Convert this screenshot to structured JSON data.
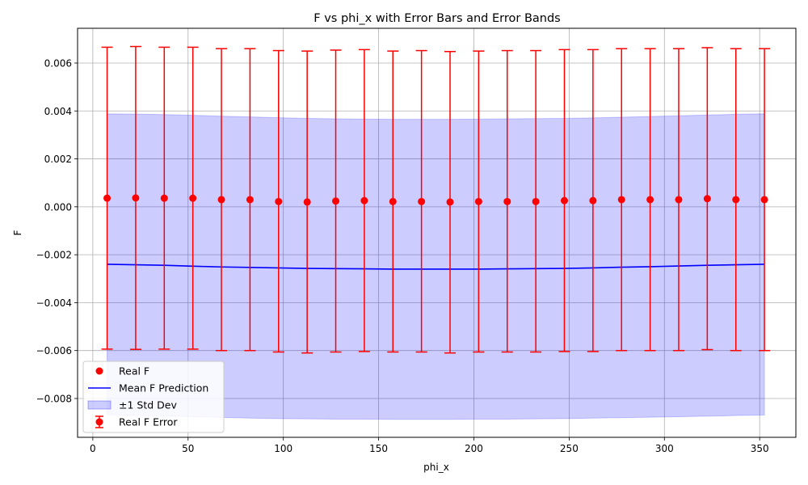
{
  "chart_data": {
    "type": "scatter",
    "title": "F vs phi_x with Error Bars and Error Bands",
    "xlabel": "phi_x",
    "ylabel": "F",
    "xlim": [
      -8,
      369
    ],
    "ylim": [
      -0.00962,
      0.00745
    ],
    "xticks": [
      0,
      50,
      100,
      150,
      200,
      250,
      300,
      350
    ],
    "xtick_labels": [
      "0",
      "50",
      "100",
      "150",
      "200",
      "250",
      "300",
      "350"
    ],
    "yticks": [
      -0.008,
      -0.006,
      -0.004,
      -0.002,
      0.0,
      0.002,
      0.004,
      0.006
    ],
    "ytick_labels": [
      "−0.008",
      "−0.006",
      "−0.004",
      "−0.002",
      "0.000",
      "0.002",
      "0.004",
      "0.006"
    ],
    "grid": true,
    "legend_position": "lower-left",
    "x": [
      7.5,
      22.5,
      37.5,
      52.5,
      67.5,
      82.5,
      97.5,
      112.5,
      127.5,
      142.5,
      157.5,
      172.5,
      187.5,
      202.5,
      217.5,
      232.5,
      247.5,
      262.5,
      277.5,
      292.5,
      307.5,
      322.5,
      337.5,
      352.5
    ],
    "series": [
      {
        "name": "Real F",
        "kind": "points",
        "color": "#ff0000",
        "values": [
          0.00036,
          0.00037,
          0.00036,
          0.00036,
          0.0003,
          0.0003,
          0.00022,
          0.0002,
          0.00024,
          0.00026,
          0.00022,
          0.00022,
          0.0002,
          0.00022,
          0.00022,
          0.00022,
          0.00026,
          0.00026,
          0.0003,
          0.0003,
          0.0003,
          0.00034,
          0.0003,
          0.0003
        ]
      },
      {
        "name": "Mean F Prediction",
        "kind": "line",
        "color": "#0000ff",
        "values": [
          -0.0024,
          -0.00242,
          -0.00244,
          -0.00248,
          -0.00251,
          -0.00253,
          -0.00255,
          -0.00257,
          -0.00258,
          -0.00259,
          -0.0026,
          -0.0026,
          -0.0026,
          -0.0026,
          -0.00259,
          -0.00258,
          -0.00257,
          -0.00255,
          -0.00252,
          -0.0025,
          -0.00247,
          -0.00244,
          -0.00242,
          -0.0024
        ]
      },
      {
        "name": "±1 Std Dev",
        "kind": "band",
        "color": "#0000ff",
        "upper": [
          0.00388,
          0.00387,
          0.00385,
          0.00382,
          0.00378,
          0.00375,
          0.00372,
          0.00369,
          0.00367,
          0.00366,
          0.00365,
          0.00365,
          0.00365,
          0.00366,
          0.00367,
          0.00368,
          0.00369,
          0.00371,
          0.00374,
          0.00377,
          0.0038,
          0.00383,
          0.00386,
          0.00388
        ],
        "lower": [
          -0.00868,
          -0.00871,
          -0.00873,
          -0.00876,
          -0.00879,
          -0.00882,
          -0.00884,
          -0.00885,
          -0.00886,
          -0.00886,
          -0.00887,
          -0.00887,
          -0.00887,
          -0.00886,
          -0.00886,
          -0.00885,
          -0.00884,
          -0.00882,
          -0.0088,
          -0.00878,
          -0.00876,
          -0.00874,
          -0.00871,
          -0.00869
        ]
      },
      {
        "name": "Real F Error",
        "kind": "errorbar",
        "color": "#ff0000",
        "upper": [
          0.00666,
          0.00669,
          0.00666,
          0.00666,
          0.0066,
          0.0066,
          0.00652,
          0.0065,
          0.00654,
          0.00656,
          0.0065,
          0.00652,
          0.00648,
          0.0065,
          0.00652,
          0.00652,
          0.00656,
          0.00656,
          0.0066,
          0.0066,
          0.0066,
          0.00664,
          0.0066,
          0.0066
        ],
        "lower": [
          -0.00594,
          -0.00595,
          -0.00594,
          -0.00594,
          -0.006,
          -0.006,
          -0.00606,
          -0.0061,
          -0.00606,
          -0.00604,
          -0.00606,
          -0.00606,
          -0.0061,
          -0.00606,
          -0.00606,
          -0.00606,
          -0.00604,
          -0.00604,
          -0.006,
          -0.006,
          -0.006,
          -0.00596,
          -0.006,
          -0.006
        ]
      }
    ],
    "legend": [
      {
        "label": "Real F",
        "marker": "dot",
        "color": "#ff0000"
      },
      {
        "label": "Mean F Prediction",
        "marker": "line",
        "color": "#0000ff"
      },
      {
        "label": "±1 Std Dev",
        "marker": "patch",
        "color": "#0000ff"
      },
      {
        "label": "Real F Error",
        "marker": "errorbar",
        "color": "#ff0000"
      }
    ]
  }
}
